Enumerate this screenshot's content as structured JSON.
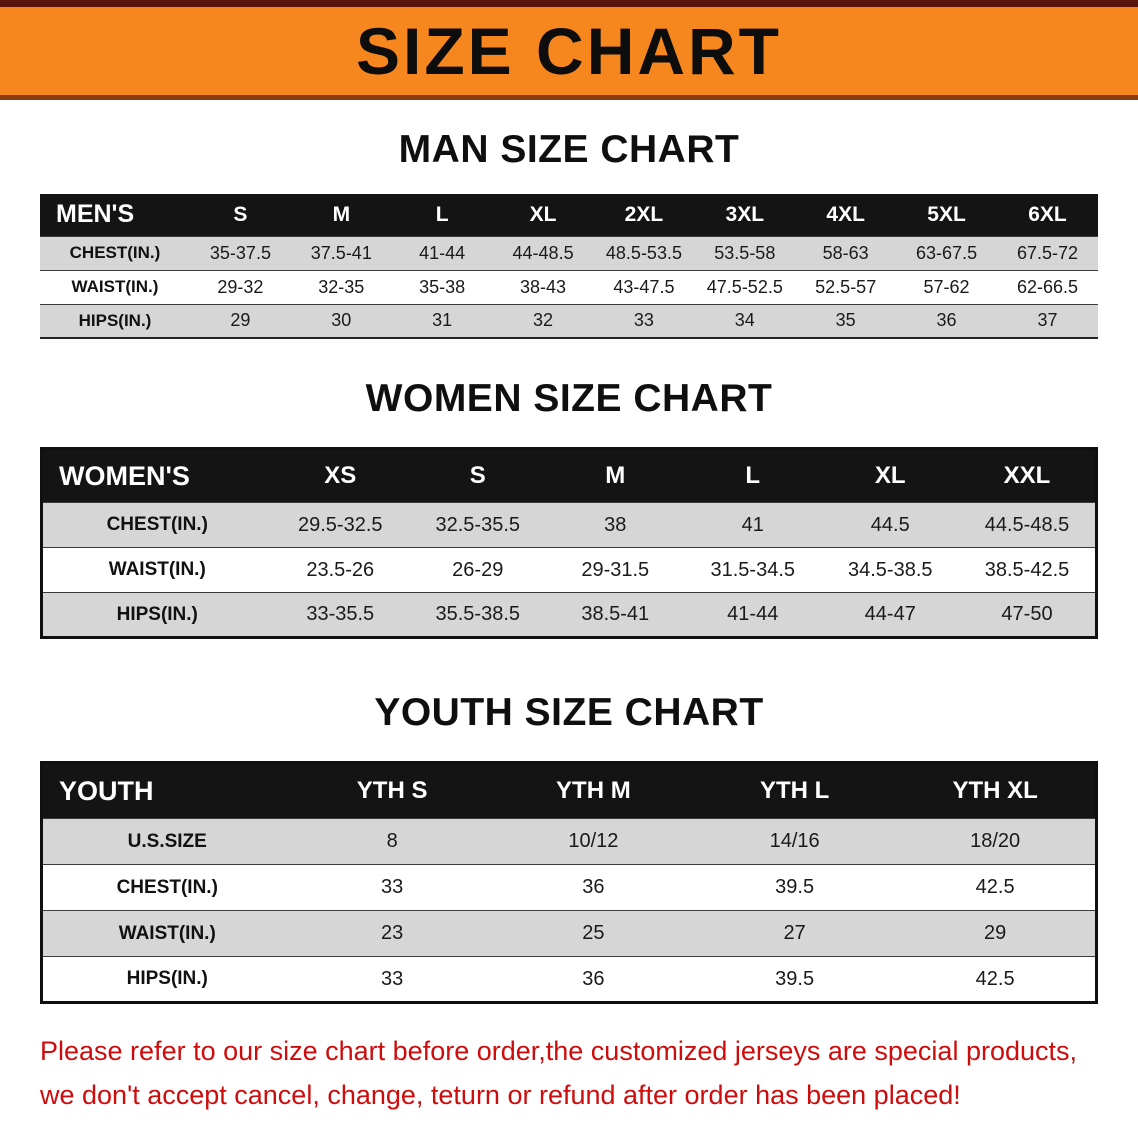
{
  "banner": {
    "title": "SIZE CHART"
  },
  "colors": {
    "banner_orange": "#f6871e",
    "header_black": "#141414",
    "row_gray": "#d6d6d6",
    "disclaimer_red": "#cf0c0c"
  },
  "sections": {
    "men": {
      "heading": "MAN SIZE CHART",
      "table": {
        "corner": "MEN'S",
        "columns": [
          "S",
          "M",
          "L",
          "XL",
          "2XL",
          "3XL",
          "4XL",
          "5XL",
          "6XL"
        ],
        "rows": [
          {
            "label": "CHEST(IN.)",
            "values": [
              "35-37.5",
              "37.5-41",
              "41-44",
              "44-48.5",
              "48.5-53.5",
              "53.5-58",
              "58-63",
              "63-67.5",
              "67.5-72"
            ]
          },
          {
            "label": "WAIST(IN.)",
            "values": [
              "29-32",
              "32-35",
              "35-38",
              "38-43",
              "43-47.5",
              "47.5-52.5",
              "52.5-57",
              "57-62",
              "62-66.5"
            ]
          },
          {
            "label": "HIPS(IN.)",
            "values": [
              "29",
              "30",
              "31",
              "32",
              "33",
              "34",
              "35",
              "36",
              "37"
            ]
          }
        ]
      }
    },
    "women": {
      "heading": "WOMEN SIZE CHART",
      "table": {
        "corner": "WOMEN'S",
        "columns": [
          "XS",
          "S",
          "M",
          "L",
          "XL",
          "XXL"
        ],
        "rows": [
          {
            "label": "CHEST(IN.)",
            "values": [
              "29.5-32.5",
              "32.5-35.5",
              "38",
              "41",
              "44.5",
              "44.5-48.5"
            ]
          },
          {
            "label": "WAIST(IN.)",
            "values": [
              "23.5-26",
              "26-29",
              "29-31.5",
              "31.5-34.5",
              "34.5-38.5",
              "38.5-42.5"
            ]
          },
          {
            "label": "HIPS(IN.)",
            "values": [
              "33-35.5",
              "35.5-38.5",
              "38.5-41",
              "41-44",
              "44-47",
              "47-50"
            ]
          }
        ]
      }
    },
    "youth": {
      "heading": "YOUTH SIZE CHART",
      "table": {
        "corner": "YOUTH",
        "columns": [
          "YTH S",
          "YTH M",
          "YTH L",
          "YTH XL"
        ],
        "rows": [
          {
            "label": "U.S.SIZE",
            "values": [
              "8",
              "10/12",
              "14/16",
              "18/20"
            ]
          },
          {
            "label": "CHEST(IN.)",
            "values": [
              "33",
              "36",
              "39.5",
              "42.5"
            ]
          },
          {
            "label": "WAIST(IN.)",
            "values": [
              "23",
              "25",
              "27",
              "29"
            ]
          },
          {
            "label": "HIPS(IN.)",
            "values": [
              "33",
              "36",
              "39.5",
              "42.5"
            ]
          }
        ]
      }
    }
  },
  "disclaimer": {
    "line1": "Please refer to our size chart before order,the customized jerseys are special products,",
    "line2": "we don't accept cancel, change, teturn or refund after order has been placed!"
  }
}
